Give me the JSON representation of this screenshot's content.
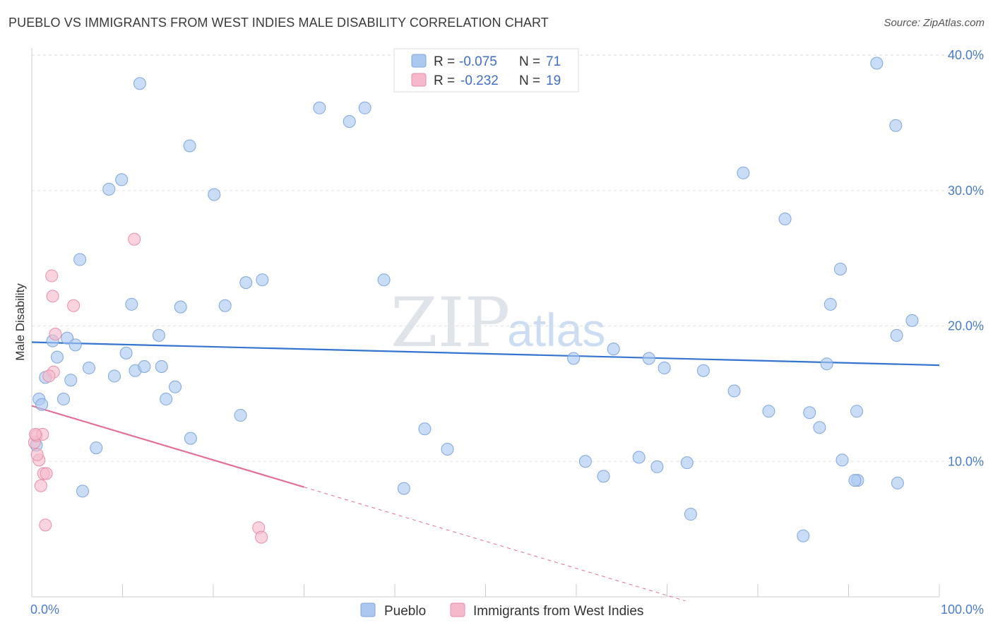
{
  "header": {
    "title": "PUEBLO VS IMMIGRANTS FROM WEST INDIES MALE DISABILITY CORRELATION CHART",
    "source": "Source: ZipAtlas.com"
  },
  "watermark": {
    "zip": "ZIP",
    "atlas": "atlas"
  },
  "legend": {
    "rows": [
      {
        "r_label": "R = ",
        "r_value": "-0.075",
        "n_label": "N = ",
        "n_value": "71",
        "color": "#aac8f0"
      },
      {
        "r_label": "R = ",
        "r_value": "-0.232",
        "n_label": "N = ",
        "n_value": "19",
        "color": "#f6b9cc"
      }
    ]
  },
  "chart_data": {
    "type": "scatter",
    "title": "PUEBLO VS IMMIGRANTS FROM WEST INDIES MALE DISABILITY CORRELATION CHART",
    "xlabel": "",
    "ylabel": "Male Disability",
    "xlim": [
      0,
      100
    ],
    "ylim": [
      0,
      40
    ],
    "x_tick_labels": [
      "0.0%",
      "100.0%"
    ],
    "y_ticks": [
      10,
      20,
      30,
      40
    ],
    "y_tick_labels": [
      "10.0%",
      "20.0%",
      "30.0%",
      "40.0%"
    ],
    "grid": "horizontal dashed",
    "legend_position": "top-center",
    "series": [
      {
        "name": "Pueblo",
        "color": "#aac8f0",
        "stroke": "#7fa6dc",
        "trend": {
          "x": [
            0,
            100
          ],
          "y": [
            18.8,
            17.1
          ],
          "color": "#3574cf"
        },
        "points": [
          [
            0.5,
            11.2
          ],
          [
            0.8,
            14.6
          ],
          [
            1.1,
            14.2
          ],
          [
            1.5,
            16.2
          ],
          [
            2.3,
            18.9
          ],
          [
            2.8,
            17.7
          ],
          [
            3.5,
            14.6
          ],
          [
            3.9,
            19.1
          ],
          [
            4.3,
            16.0
          ],
          [
            4.8,
            18.6
          ],
          [
            5.3,
            24.9
          ],
          [
            5.6,
            7.8
          ],
          [
            6.3,
            16.9
          ],
          [
            7.1,
            11.0
          ],
          [
            8.5,
            30.1
          ],
          [
            9.1,
            16.3
          ],
          [
            9.9,
            30.8
          ],
          [
            10.4,
            18.0
          ],
          [
            11.0,
            21.6
          ],
          [
            11.4,
            16.7
          ],
          [
            11.9,
            37.9
          ],
          [
            12.4,
            17.0
          ],
          [
            14.0,
            19.3
          ],
          [
            14.3,
            17.0
          ],
          [
            14.8,
            14.6
          ],
          [
            15.8,
            15.5
          ],
          [
            16.4,
            21.4
          ],
          [
            17.4,
            33.3
          ],
          [
            17.5,
            11.7
          ],
          [
            20.1,
            29.7
          ],
          [
            21.3,
            21.5
          ],
          [
            23.0,
            13.4
          ],
          [
            23.6,
            23.2
          ],
          [
            25.4,
            23.4
          ],
          [
            31.7,
            36.1
          ],
          [
            35.0,
            35.1
          ],
          [
            36.7,
            36.1
          ],
          [
            38.8,
            23.4
          ],
          [
            41.0,
            8.0
          ],
          [
            43.3,
            12.4
          ],
          [
            45.8,
            10.9
          ],
          [
            59.7,
            17.6
          ],
          [
            61.0,
            10.0
          ],
          [
            63.0,
            8.9
          ],
          [
            64.1,
            18.3
          ],
          [
            66.9,
            10.3
          ],
          [
            68.0,
            17.6
          ],
          [
            68.9,
            9.6
          ],
          [
            69.7,
            16.9
          ],
          [
            72.2,
            9.9
          ],
          [
            72.6,
            6.1
          ],
          [
            74.0,
            16.7
          ],
          [
            77.4,
            15.2
          ],
          [
            78.4,
            31.3
          ],
          [
            81.2,
            13.7
          ],
          [
            83.0,
            27.9
          ],
          [
            85.0,
            4.5
          ],
          [
            85.7,
            13.6
          ],
          [
            86.8,
            12.5
          ],
          [
            87.6,
            17.2
          ],
          [
            88.0,
            21.6
          ],
          [
            89.1,
            24.2
          ],
          [
            89.3,
            10.1
          ],
          [
            90.9,
            13.7
          ],
          [
            91.0,
            8.6
          ],
          [
            93.1,
            39.4
          ],
          [
            95.2,
            34.8
          ],
          [
            95.3,
            19.3
          ],
          [
            95.4,
            8.4
          ],
          [
            97.0,
            20.4
          ],
          [
            90.7,
            8.6
          ]
        ]
      },
      {
        "name": "Immigrants from West Indies",
        "color": "#f6b9cc",
        "stroke": "#e88ea9",
        "trend": {
          "x": [
            0,
            30
          ],
          "y": [
            14.1,
            8.1
          ],
          "dashed_to_x": 72,
          "color": "#e36f97"
        },
        "points": [
          [
            0.3,
            11.4
          ],
          [
            0.5,
            11.9
          ],
          [
            0.8,
            10.1
          ],
          [
            1.2,
            12.0
          ],
          [
            1.0,
            8.2
          ],
          [
            1.3,
            9.1
          ],
          [
            1.5,
            5.3
          ],
          [
            1.6,
            9.1
          ],
          [
            2.2,
            23.7
          ],
          [
            2.3,
            22.2
          ],
          [
            2.4,
            16.6
          ],
          [
            2.6,
            19.4
          ],
          [
            4.6,
            21.5
          ],
          [
            11.3,
            26.4
          ],
          [
            25.0,
            5.1
          ],
          [
            25.3,
            4.4
          ],
          [
            0.6,
            10.5
          ],
          [
            1.9,
            16.3
          ],
          [
            0.4,
            12.0
          ]
        ]
      }
    ]
  }
}
